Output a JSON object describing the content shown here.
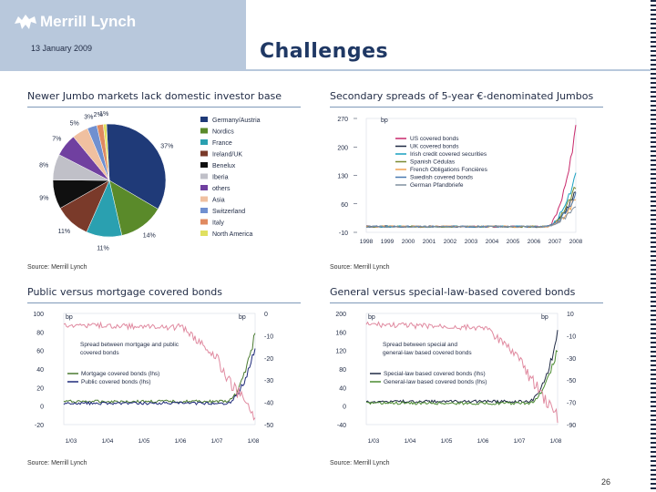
{
  "header": {
    "logo_text": "Merrill Lynch",
    "date": "13 January 2009",
    "title": "Challenges"
  },
  "page_number": "26",
  "colors": {
    "navy": "#1f2a44",
    "accent": "#b8c8dc"
  },
  "panels": [
    {
      "title": "Newer Jumbo markets lack domestic investor base",
      "source": "Source: Merrill Lynch"
    },
    {
      "title": "Secondary spreads of 5-year €-denominated Jumbos",
      "source": "Source: Merrill Lynch"
    },
    {
      "title": "Public versus mortgage covered bonds",
      "source": "Source: Merrill Lynch"
    },
    {
      "title": "General versus special-law-based covered bonds",
      "source": "Source: Merrill Lynch"
    }
  ],
  "chart_data": [
    {
      "type": "pie",
      "slice_labels": [
        "37%",
        "14%",
        "11%",
        "11%",
        "9%",
        "8%",
        "7%",
        "5%",
        "3%",
        "2%",
        "1%"
      ],
      "values": [
        37,
        14,
        11,
        11,
        9,
        8,
        7,
        5,
        3,
        2,
        1
      ],
      "legend": [
        "Germany/Austria",
        "Nordics",
        "France",
        "Ireland/UK",
        "Benelux",
        "Iberia",
        "others",
        "Asia",
        "Switzerland",
        "Italy",
        "North America"
      ],
      "colors": [
        "#1f3a78",
        "#5a8a2a",
        "#2aa0b0",
        "#7a3a2a",
        "#101010",
        "#c0c0c8",
        "#7040a0",
        "#f0c0a0",
        "#7090d0",
        "#e08a60",
        "#e0e060"
      ],
      "legend_position": "right"
    },
    {
      "type": "line",
      "unit_label": "bp",
      "y_ticks": [
        "270",
        "200",
        "130",
        "60",
        "-10"
      ],
      "ylim": [
        -10,
        270
      ],
      "x_ticks": [
        "1998",
        "1999",
        "2000",
        "2001",
        "2002",
        "2003",
        "2004",
        "2005",
        "2006",
        "2007",
        "2008"
      ],
      "series": [
        {
          "name": "US covered bonds",
          "color": "#c8286a"
        },
        {
          "name": "UK covered bonds",
          "color": "#1f2a44"
        },
        {
          "name": "Irish credit covered securities",
          "color": "#18a0c0"
        },
        {
          "name": "Spanish Cédulas",
          "color": "#7a8a30"
        },
        {
          "name": "French Obligations Foncières",
          "color": "#f0a050"
        },
        {
          "name": "Swedish covered bonds",
          "color": "#4a7ab0"
        },
        {
          "name": "German Pfandbriefe",
          "color": "#8090a0"
        }
      ]
    },
    {
      "type": "line",
      "left_unit": "bp",
      "right_unit": "bp",
      "y_ticks_left": [
        "100",
        "80",
        "60",
        "40",
        "20",
        "0",
        "-20"
      ],
      "y_ticks_right": [
        "0",
        "-10",
        "-20",
        "-30",
        "-40",
        "-50"
      ],
      "x_ticks": [
        "1/03",
        "1/04",
        "1/05",
        "1/06",
        "1/07",
        "1/08"
      ],
      "annotation": "Spread between mortgage and public covered bonds",
      "series": [
        {
          "name": "Mortgage covered bonds (lhs)",
          "color": "#4a7a30"
        },
        {
          "name": "Public covered bonds (lhs)",
          "color": "#1f2a7a"
        },
        {
          "name": "",
          "color": "#e08aa0"
        }
      ]
    },
    {
      "type": "line",
      "left_unit": "bp",
      "right_unit": "bp",
      "y_ticks_left": [
        "200",
        "160",
        "120",
        "80",
        "40",
        "0",
        "-40"
      ],
      "y_ticks_right": [
        "10",
        "-10",
        "-30",
        "-50",
        "-70",
        "-90"
      ],
      "x_ticks": [
        "1/03",
        "1/04",
        "1/05",
        "1/06",
        "1/07",
        "1/08"
      ],
      "annotation": "Spread between special and general-law based covered bonds",
      "series": [
        {
          "name": "Special-law based covered bonds (lhs)",
          "color": "#1f2a44"
        },
        {
          "name": "General-law based covered bonds (lhs)",
          "color": "#4a8a30"
        },
        {
          "name": "",
          "color": "#e08aa0"
        }
      ]
    }
  ]
}
